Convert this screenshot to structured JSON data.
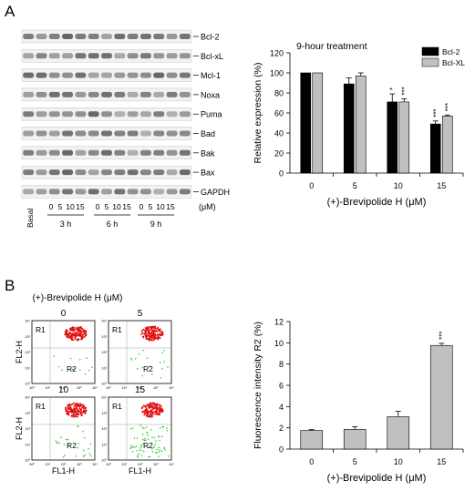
{
  "panel_a": {
    "letter": "A",
    "blot_labels": [
      "Bcl-2",
      "Bcl-xL",
      "Mcl-1",
      "Noxa",
      "Puma",
      "Bad",
      "Bak",
      "Bax",
      "GAPDH"
    ],
    "dose_ticks": [
      "0",
      "5",
      "10",
      "15"
    ],
    "dose_unit": "(μM)",
    "basal_label": "Basal",
    "time_labels": [
      "3 h",
      "6 h",
      "9 h"
    ]
  },
  "panel_b": {
    "letter": "B",
    "flow_title": "(+)-Brevipolide H (μM)",
    "plot_labels": [
      "0",
      "5",
      "10",
      "15"
    ],
    "gate_r1": "R1",
    "gate_r2": "R2",
    "y_axis": "FL2-H",
    "x_axis": "FL1-H",
    "decade_ticks": [
      "10⁰",
      "10¹",
      "10²",
      "10³",
      "10⁴"
    ]
  },
  "colors": {
    "bcl2_bar": "#000000",
    "bclxl_bar": "#c0c0c0",
    "fluor_bar": "#c0c0c0",
    "flow_high": "#e01010",
    "flow_low": "#33cc33"
  },
  "chart_data": [
    {
      "type": "bar",
      "title": "9-hour treatment",
      "categories": [
        "0",
        "5",
        "10",
        "15"
      ],
      "series": [
        {
          "name": "Bcl-2",
          "values": [
            100,
            89,
            71,
            49
          ],
          "errors": [
            0,
            6,
            8,
            3
          ],
          "sig": [
            "",
            "",
            "*",
            "***"
          ]
        },
        {
          "name": "Bcl-XL",
          "values": [
            100,
            97,
            71,
            57
          ],
          "errors": [
            0,
            3,
            3,
            1
          ],
          "sig": [
            "",
            "",
            "***",
            "***"
          ]
        }
      ],
      "xlabel": "(+)-Brevipolide H (μM)",
      "ylabel": "Relative expression (%)",
      "ylim": [
        0,
        120
      ],
      "yticks": [
        "0",
        "20",
        "40",
        "60",
        "80",
        "100",
        "120"
      ],
      "legend": "top-right"
    },
    {
      "type": "bar",
      "categories": [
        "0",
        "5",
        "10",
        "15"
      ],
      "series": [
        {
          "values": [
            1.75,
            1.85,
            3.05,
            9.75
          ],
          "errors": [
            0.08,
            0.25,
            0.5,
            0.2
          ],
          "sig": [
            "",
            "",
            "",
            "***"
          ]
        }
      ],
      "xlabel": "(+)-Brevipolide H (μM)",
      "ylabel": "Fluorescence intensity R2 (%)",
      "ylim": [
        0,
        12
      ],
      "yticks": [
        "0",
        "2",
        "4",
        "6",
        "8",
        "10",
        "12"
      ]
    }
  ]
}
